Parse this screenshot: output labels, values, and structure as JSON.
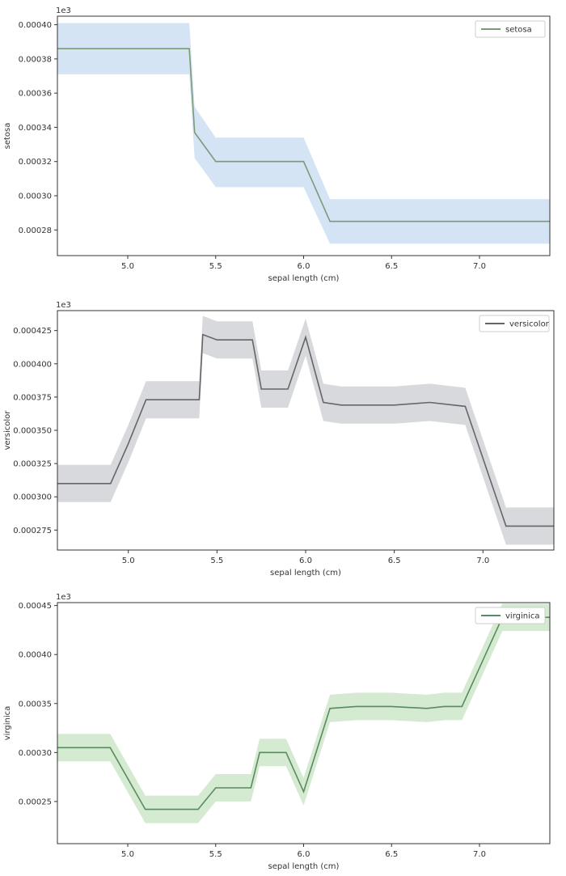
{
  "chart_data": [
    {
      "type": "line",
      "title": "",
      "xlabel": "sepal length (cm)",
      "ylabel": "setosa",
      "offset_label": "1e3",
      "xlim": [
        4.6,
        7.4
      ],
      "ylim": [
        0.000265,
        0.000405
      ],
      "xticks": [
        5.0,
        5.5,
        6.0,
        6.5,
        7.0
      ],
      "xtick_labels": [
        "5.0",
        "5.5",
        "6.0",
        "6.5",
        "7.0"
      ],
      "yticks": [
        0.00028,
        0.0003,
        0.00032,
        0.00034,
        0.00036,
        0.00038,
        0.0004
      ],
      "ytick_labels": [
        "0.00028",
        "0.00030",
        "0.00032",
        "0.00034",
        "0.00036",
        "0.00038",
        "0.00040"
      ],
      "grid": false,
      "legend_position": "top-right",
      "series": [
        {
          "name": "setosa",
          "line_color": "#7a9a78",
          "band_color": "#cfe1f3",
          "x": [
            4.6,
            5.35,
            5.38,
            5.5,
            6.0,
            6.15,
            7.4
          ],
          "values": [
            0.000386,
            0.000386,
            0.000337,
            0.00032,
            0.00032,
            0.000285,
            0.000285
          ],
          "lower": [
            0.000371,
            0.000371,
            0.000322,
            0.000305,
            0.000305,
            0.000272,
            0.000272
          ],
          "upper": [
            0.000401,
            0.000401,
            0.000352,
            0.000334,
            0.000334,
            0.000298,
            0.000298
          ]
        }
      ]
    },
    {
      "type": "line",
      "title": "",
      "xlabel": "sepal length (cm)",
      "ylabel": "versicolor",
      "offset_label": "1e3",
      "xlim": [
        4.6,
        7.4
      ],
      "ylim": [
        0.00026,
        0.00044
      ],
      "xticks": [
        5.0,
        5.5,
        6.0,
        6.5,
        7.0
      ],
      "xtick_labels": [
        "5.0",
        "5.5",
        "6.0",
        "6.5",
        "7.0"
      ],
      "yticks": [
        0.000275,
        0.0003,
        0.000325,
        0.00035,
        0.000375,
        0.0004,
        0.000425
      ],
      "ytick_labels": [
        "0.000275",
        "0.000300",
        "0.000325",
        "0.000350",
        "0.000375",
        "0.000400",
        "0.000425"
      ],
      "grid": false,
      "legend_position": "top-right",
      "series": [
        {
          "name": "versicolor",
          "line_color": "#666666",
          "band_color": "#d3d5d8",
          "x": [
            4.6,
            4.9,
            5.0,
            5.1,
            5.4,
            5.42,
            5.5,
            5.7,
            5.75,
            5.9,
            6.0,
            6.1,
            6.2,
            6.5,
            6.7,
            6.9,
            7.13,
            7.4
          ],
          "values": [
            0.00031,
            0.00031,
            0.00034,
            0.000373,
            0.000373,
            0.000422,
            0.000418,
            0.000418,
            0.000381,
            0.000381,
            0.00042,
            0.000371,
            0.000369,
            0.000369,
            0.000371,
            0.000368,
            0.000278,
            0.000278
          ],
          "lower": [
            0.000296,
            0.000296,
            0.000326,
            0.000359,
            0.000359,
            0.000408,
            0.000404,
            0.000404,
            0.000367,
            0.000367,
            0.000406,
            0.000357,
            0.000355,
            0.000355,
            0.000357,
            0.000354,
            0.000264,
            0.000264
          ],
          "upper": [
            0.000324,
            0.000324,
            0.000354,
            0.000387,
            0.000387,
            0.000436,
            0.000432,
            0.000432,
            0.000395,
            0.000395,
            0.000434,
            0.000385,
            0.000383,
            0.000383,
            0.000385,
            0.000382,
            0.000292,
            0.000292
          ]
        }
      ]
    },
    {
      "type": "line",
      "title": "",
      "xlabel": "sepal length (cm)",
      "ylabel": "virginica",
      "offset_label": "1e3",
      "xlim": [
        4.6,
        7.4
      ],
      "ylim": [
        0.000207,
        0.000453
      ],
      "xticks": [
        5.0,
        5.5,
        6.0,
        6.5,
        7.0
      ],
      "xtick_labels": [
        "5.0",
        "5.5",
        "6.0",
        "6.5",
        "7.0"
      ],
      "yticks": [
        0.00025,
        0.0003,
        0.00035,
        0.0004,
        0.00045
      ],
      "ytick_labels": [
        "0.00025",
        "0.00030",
        "0.00035",
        "0.00040",
        "0.00045"
      ],
      "grid": false,
      "legend_position": "top-right",
      "series": [
        {
          "name": "virginica",
          "line_color": "#5a8a60",
          "band_color": "#cfe9cd",
          "x": [
            4.6,
            4.9,
            5.1,
            5.4,
            5.5,
            5.7,
            5.75,
            5.9,
            6.0,
            6.15,
            6.3,
            6.5,
            6.7,
            6.8,
            6.9,
            7.13,
            7.4
          ],
          "values": [
            0.000305,
            0.000305,
            0.000242,
            0.000242,
            0.000264,
            0.000264,
            0.0003,
            0.0003,
            0.00026,
            0.000345,
            0.000347,
            0.000347,
            0.000345,
            0.000347,
            0.000347,
            0.000438,
            0.000438
          ],
          "lower": [
            0.000291,
            0.000291,
            0.000228,
            0.000228,
            0.00025,
            0.00025,
            0.000286,
            0.000286,
            0.000246,
            0.000331,
            0.000333,
            0.000333,
            0.000331,
            0.000333,
            0.000333,
            0.000424,
            0.000424
          ],
          "upper": [
            0.000319,
            0.000319,
            0.000256,
            0.000256,
            0.000278,
            0.000278,
            0.000314,
            0.000314,
            0.000274,
            0.000359,
            0.000361,
            0.000361,
            0.000359,
            0.000361,
            0.000361,
            0.000452,
            0.000452
          ]
        }
      ]
    }
  ]
}
